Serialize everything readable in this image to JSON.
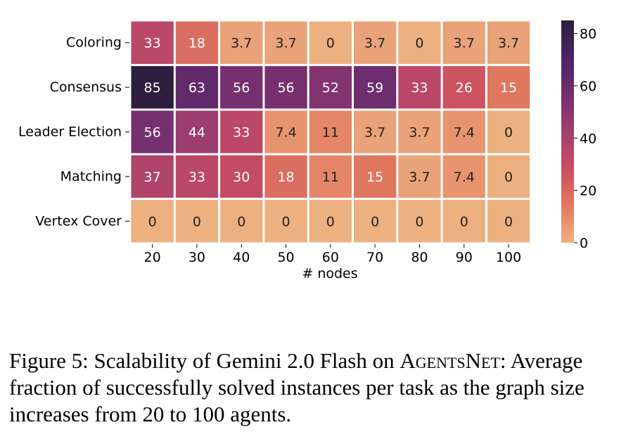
{
  "chart_data": {
    "type": "heatmap",
    "rows": [
      "Coloring",
      "Consensus",
      "Leader Election",
      "Matching",
      "Vertex Cover"
    ],
    "columns": [
      "20",
      "30",
      "40",
      "50",
      "60",
      "70",
      "80",
      "90",
      "100"
    ],
    "values": [
      [
        33,
        18,
        3.7,
        3.7,
        0,
        3.7,
        0,
        3.7,
        3.7
      ],
      [
        85,
        63,
        56,
        56,
        52,
        59,
        33,
        26,
        15
      ],
      [
        56,
        44,
        33,
        7.4,
        11,
        3.7,
        3.7,
        7.4,
        0
      ],
      [
        37,
        33,
        30,
        18,
        11,
        15,
        3.7,
        7.4,
        0
      ],
      [
        0,
        0,
        0,
        0,
        0,
        0,
        0,
        0,
        0
      ]
    ],
    "xlabel": "# nodes",
    "ylabel": "",
    "colorbar": {
      "min": 0,
      "max": 85,
      "ticks": [
        0,
        20,
        40,
        60,
        80
      ]
    },
    "colormap": [
      "#edb081",
      "#e17a5f",
      "#c84d62",
      "#a13f70",
      "#742f6f",
      "#4b2366",
      "#2d1e3e"
    ]
  },
  "caption": {
    "prefix": "Figure 5: Scalability of Gemini 2.0 Flash on ",
    "name": "AgentsNet",
    "suffix": ": Average fraction of successfully solved instances per task as the graph size increases from 20 to 100 agents."
  }
}
